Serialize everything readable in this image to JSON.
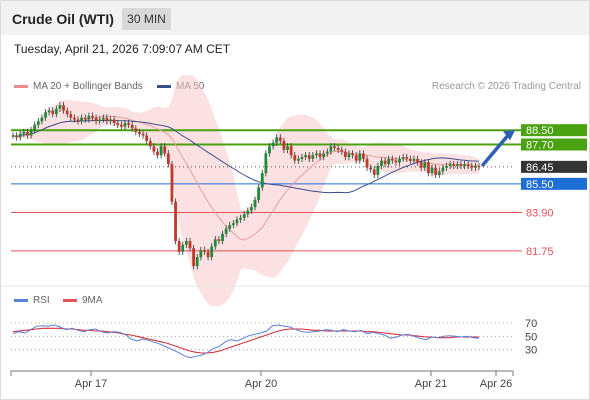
{
  "header": {
    "title": "Crude Oil (WTI)",
    "timeframe": "30 MIN"
  },
  "timestamp": "Tuesday, April 21, 2026 7:09:07 AM CET",
  "legend": {
    "bollinger": "MA 20 + Bollinger Bands",
    "ma50": "MA 50",
    "credit": "Research © 2026 Trading Central"
  },
  "indicator_legend": {
    "rsi": "RSI",
    "ma9": "9MA"
  },
  "colors": {
    "green": "#4aa210",
    "blue": "#1e6ed8",
    "red": "#e8515a",
    "dark": "#333333",
    "ma50": "#3a4f8f",
    "bb": "#f7c9c9",
    "arrow": "#2f5fb0",
    "rsi": "#5b7fdb"
  },
  "chart_data": [
    {
      "type": "line",
      "title": "Crude Oil (WTI)",
      "timeframe": "30 MIN",
      "x_ticks": [
        "Apr 17",
        "Apr 20",
        "Apr 21",
        "Apr 26"
      ],
      "ylim": [
        79.9,
        90.3
      ],
      "current_price": 86.45,
      "levels": [
        {
          "label": "88.50",
          "value": 88.5,
          "color": "#4aa210",
          "kind": "resistance"
        },
        {
          "label": "87.70",
          "value": 87.7,
          "color": "#4aa210",
          "kind": "resistance"
        },
        {
          "label": "86.45",
          "value": 86.45,
          "color": "#333333",
          "kind": "last"
        },
        {
          "label": "85.50",
          "value": 85.5,
          "color": "#1e6ed8",
          "kind": "pivot"
        },
        {
          "label": "83.90",
          "value": 83.9,
          "color": "#e8515a",
          "kind": "support"
        },
        {
          "label": "81.75",
          "value": 81.75,
          "color": "#e8515a",
          "kind": "support"
        }
      ],
      "close_series": [
        88.2,
        88.1,
        88.3,
        88.4,
        88.2,
        88.5,
        88.8,
        89.0,
        89.2,
        89.5,
        89.6,
        89.4,
        89.7,
        89.9,
        89.6,
        89.4,
        89.2,
        89.1,
        89.0,
        89.2,
        89.1,
        89.3,
        89.2,
        89.0,
        89.1,
        89.2,
        89.0,
        89.1,
        88.9,
        88.8,
        88.7,
        88.9,
        88.8,
        88.6,
        88.4,
        88.3,
        88.2,
        87.9,
        87.6,
        87.3,
        87.1,
        87.6,
        87.2,
        86.6,
        84.5,
        82.3,
        81.7,
        82.1,
        82.3,
        81.9,
        80.9,
        81.4,
        81.8,
        81.7,
        81.4,
        82.0,
        82.4,
        82.3,
        82.7,
        83.0,
        83.2,
        83.3,
        83.5,
        83.6,
        83.8,
        84.0,
        84.2,
        84.6,
        85.3,
        86.1,
        87.2,
        87.6,
        87.8,
        88.1,
        87.9,
        87.4,
        87.6,
        87.1,
        86.8,
        86.9,
        87.0,
        87.1,
        86.9,
        87.1,
        87.2,
        87.0,
        87.2,
        87.3,
        87.6,
        87.5,
        87.4,
        87.3,
        87.0,
        87.2,
        87.1,
        86.8,
        87.2,
        86.9,
        86.4,
        86.3,
        86.0,
        86.5,
        86.8,
        86.6,
        86.9,
        86.8,
        86.7,
        86.9,
        87.0,
        86.9,
        86.8,
        86.9,
        86.7,
        86.4,
        86.7,
        86.1,
        86.4,
        86.0,
        86.2,
        86.4,
        86.5,
        86.6,
        86.5,
        86.6,
        86.5,
        86.6,
        86.5,
        86.4,
        86.5,
        86.45
      ],
      "arrow": {
        "from": 86.5,
        "to": 88.5
      }
    },
    {
      "type": "line",
      "title": "RSI",
      "ylim": [
        10,
        85
      ],
      "y_ticks": [
        70,
        50,
        30
      ],
      "series": [
        {
          "name": "RSI",
          "values": [
            54,
            57,
            55,
            60,
            65,
            66,
            65,
            67,
            64,
            60,
            62,
            59,
            57,
            60,
            61,
            57,
            55,
            57,
            56,
            53,
            46,
            43,
            46,
            44,
            41,
            38,
            34,
            30,
            26,
            21,
            18,
            20,
            22,
            26,
            32,
            35,
            42,
            45,
            43,
            47,
            51,
            53,
            55,
            58,
            66,
            67,
            65,
            64,
            60,
            57,
            56,
            57,
            58,
            60,
            59,
            57,
            60,
            58,
            57,
            59,
            54,
            56,
            54,
            52,
            47,
            49,
            52,
            53,
            50,
            47,
            45,
            49,
            48,
            50,
            51,
            50,
            49,
            50,
            48,
            47
          ]
        },
        {
          "name": "9MA",
          "values": [
            57,
            58,
            59,
            60,
            61,
            62,
            62,
            62,
            62,
            61,
            61,
            60,
            59,
            59,
            58,
            58,
            57,
            56,
            55,
            53,
            52,
            50,
            48,
            46,
            44,
            42,
            40,
            37,
            34,
            31,
            28,
            26,
            25,
            25,
            26,
            28,
            31,
            34,
            37,
            40,
            43,
            46,
            49,
            52,
            55,
            58,
            60,
            61,
            61,
            61,
            60,
            59,
            59,
            58,
            58,
            58,
            58,
            58,
            58,
            58,
            57,
            57,
            56,
            55,
            54,
            53,
            52,
            52,
            51,
            50,
            49,
            49,
            48,
            48,
            48,
            49,
            49,
            49,
            49,
            49
          ]
        }
      ]
    }
  ]
}
